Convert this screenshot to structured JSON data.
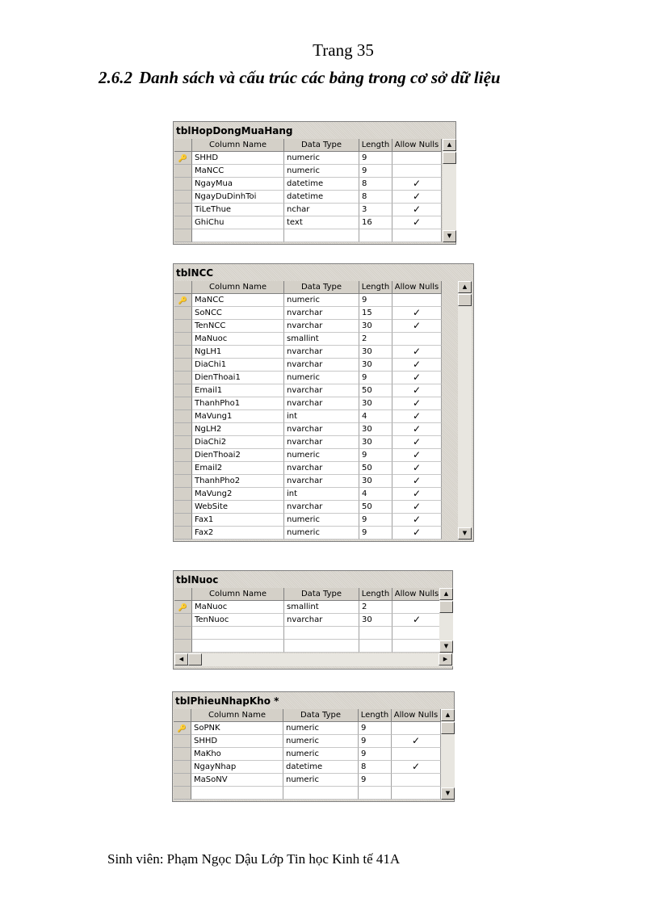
{
  "page_number": "Trang 35",
  "section": {
    "number": "2.6.2",
    "title": "Danh sách và cấu trúc các bảng trong cơ sở dữ liệu"
  },
  "columns": [
    "Column Name",
    "Data Type",
    "Length",
    "Allow Nulls"
  ],
  "icons": {
    "primary_key": "key-icon",
    "allow_null": "checkmark-icon"
  },
  "tables": [
    {
      "name": "tblHopDongMuaHang",
      "rows": [
        {
          "column": "SHHD",
          "type": "numeric",
          "length": "9",
          "nulls": false,
          "key": true
        },
        {
          "column": "MaNCC",
          "type": "numeric",
          "length": "9",
          "nulls": false
        },
        {
          "column": "NgayMua",
          "type": "datetime",
          "length": "8",
          "nulls": true
        },
        {
          "column": "NgayDuDinhToi",
          "type": "datetime",
          "length": "8",
          "nulls": true
        },
        {
          "column": "TiLeThue",
          "type": "nchar",
          "length": "3",
          "nulls": true
        },
        {
          "column": "GhiChu",
          "type": "text",
          "length": "16",
          "nulls": true
        }
      ]
    },
    {
      "name": "tblNCC",
      "rows": [
        {
          "column": "MaNCC",
          "type": "numeric",
          "length": "9",
          "nulls": false,
          "key": true
        },
        {
          "column": "SoNCC",
          "type": "nvarchar",
          "length": "15",
          "nulls": true
        },
        {
          "column": "TenNCC",
          "type": "nvarchar",
          "length": "30",
          "nulls": true
        },
        {
          "column": "MaNuoc",
          "type": "smallint",
          "length": "2",
          "nulls": false
        },
        {
          "column": "NgLH1",
          "type": "nvarchar",
          "length": "30",
          "nulls": true
        },
        {
          "column": "DiaChi1",
          "type": "nvarchar",
          "length": "30",
          "nulls": true
        },
        {
          "column": "DienThoai1",
          "type": "numeric",
          "length": "9",
          "nulls": true
        },
        {
          "column": "Email1",
          "type": "nvarchar",
          "length": "50",
          "nulls": true
        },
        {
          "column": "ThanhPho1",
          "type": "nvarchar",
          "length": "30",
          "nulls": true
        },
        {
          "column": "MaVung1",
          "type": "int",
          "length": "4",
          "nulls": true
        },
        {
          "column": "NgLH2",
          "type": "nvarchar",
          "length": "30",
          "nulls": true
        },
        {
          "column": "DiaChi2",
          "type": "nvarchar",
          "length": "30",
          "nulls": true
        },
        {
          "column": "DienThoai2",
          "type": "numeric",
          "length": "9",
          "nulls": true
        },
        {
          "column": "Email2",
          "type": "nvarchar",
          "length": "50",
          "nulls": true
        },
        {
          "column": "ThanhPho2",
          "type": "nvarchar",
          "length": "30",
          "nulls": true
        },
        {
          "column": "MaVung2",
          "type": "int",
          "length": "4",
          "nulls": true
        },
        {
          "column": "WebSite",
          "type": "nvarchar",
          "length": "50",
          "nulls": true
        },
        {
          "column": "Fax1",
          "type": "numeric",
          "length": "9",
          "nulls": true
        },
        {
          "column": "Fax2",
          "type": "numeric",
          "length": "9",
          "nulls": true
        }
      ]
    },
    {
      "name": "tblNuoc",
      "rows": [
        {
          "column": "MaNuoc",
          "type": "smallint",
          "length": "2",
          "nulls": false,
          "key": true
        },
        {
          "column": "TenNuoc",
          "type": "nvarchar",
          "length": "30",
          "nulls": true
        }
      ]
    },
    {
      "name": "tblPhieuNhapKho *",
      "rows": [
        {
          "column": "SoPNK",
          "type": "numeric",
          "length": "9",
          "nulls": false,
          "key": true
        },
        {
          "column": "SHHD",
          "type": "numeric",
          "length": "9",
          "nulls": true
        },
        {
          "column": "MaKho",
          "type": "numeric",
          "length": "9",
          "nulls": false
        },
        {
          "column": "NgayNhap",
          "type": "datetime",
          "length": "8",
          "nulls": true
        },
        {
          "column": "MaSoNV",
          "type": "numeric",
          "length": "9",
          "nulls": false
        }
      ]
    }
  ],
  "footer": "Sinh viên: Phạm Ngọc Dậu Lớp Tin học Kinh tế 41A"
}
